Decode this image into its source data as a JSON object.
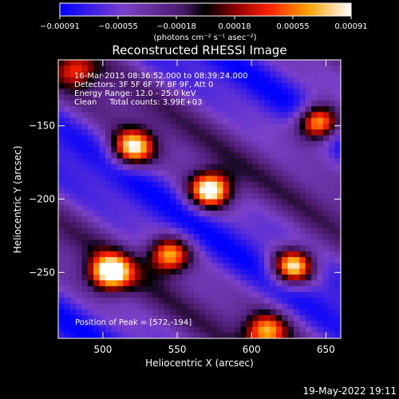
{
  "chart_data": {
    "type": "heatmap",
    "title": "Reconstructed RHESSI Image",
    "xlabel": "Heliocentric X (arcsec)",
    "ylabel": "Heliocentric Y (arcsec)",
    "xlim": [
      470,
      660
    ],
    "ylim": [
      -295,
      -105
    ],
    "x_ticks": [
      500,
      550,
      600,
      650
    ],
    "y_ticks": [
      -150,
      -200,
      -250
    ],
    "colorbar": {
      "ticks": [
        "-0.00091",
        "-0.00055",
        "-0.00018",
        "0.00018",
        "0.00055",
        "0.00091"
      ],
      "range": [
        -0.00091,
        0.00091
      ],
      "unit_label": "(photons cm⁻² s⁻¹ asec⁻²)"
    },
    "annotations": [
      "16-Mar-2015 08:36:52.000 to 08:39:24.000",
      "Detectors: 3F 5F 6F 7F 8F 9F, Att 0",
      "Energy Range: 12.0 - 25.0 keV",
      "Clean     Total counts: 3.99E+03"
    ],
    "peak_label": "Position of Peak = [572,-194]",
    "peak_position": [
      572,
      -194
    ],
    "bright_sources": [
      {
        "x": 645,
        "y": -148,
        "value": 0.0009
      },
      {
        "x": 572,
        "y": -194,
        "value": 0.00091
      },
      {
        "x": 520,
        "y": -165,
        "value": 0.0008
      },
      {
        "x": 505,
        "y": -250,
        "value": 0.00085
      },
      {
        "x": 545,
        "y": -238,
        "value": 0.0007
      },
      {
        "x": 628,
        "y": -246,
        "value": 0.0009
      },
      {
        "x": 610,
        "y": -290,
        "value": 0.0006
      },
      {
        "x": 482,
        "y": -112,
        "value": 0.0004
      }
    ]
  },
  "footer": {
    "date_stamp": "19-May-2022 19:11"
  }
}
